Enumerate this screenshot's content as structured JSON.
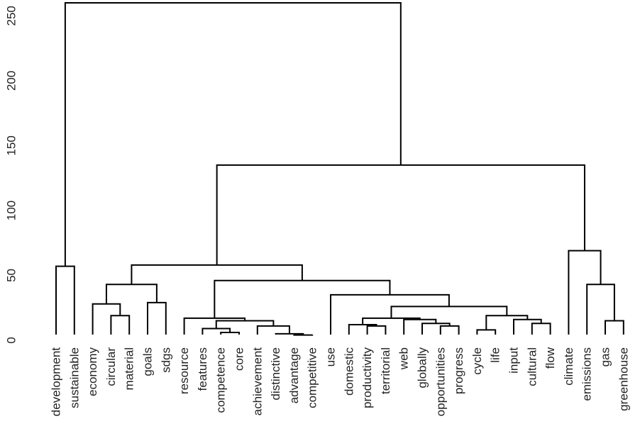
{
  "chart_data": {
    "type": "dendrogram",
    "labels": [
      "development",
      "sustainable",
      "economy",
      "circular",
      "material",
      "goals",
      "sdgs",
      "resource",
      "features",
      "competence",
      "core",
      "achievement",
      "distinctive",
      "advantage",
      "competitive",
      "use",
      "domestic",
      "productivity",
      "territorial",
      "web",
      "globally",
      "opportunities",
      "progress",
      "cycle",
      "life",
      "input",
      "cultural",
      "flow",
      "climate",
      "emissions",
      "gas",
      "greenhouse"
    ],
    "merge": [
      [
        -14,
        -15
      ],
      [
        -13,
        1
      ],
      [
        -10,
        -11
      ],
      [
        -24,
        -25
      ],
      [
        -9,
        3
      ],
      [
        -18,
        -19
      ],
      [
        -22,
        -23
      ],
      [
        -12,
        2
      ],
      [
        -21,
        7
      ],
      [
        -27,
        -28
      ],
      [
        -17,
        6
      ],
      [
        -31,
        -32
      ],
      [
        5,
        8
      ],
      [
        -20,
        9
      ],
      [
        -26,
        10
      ],
      [
        -8,
        13
      ],
      [
        11,
        14
      ],
      [
        -4,
        -5
      ],
      [
        4,
        15
      ],
      [
        17,
        19
      ],
      [
        -3,
        18
      ],
      [
        -6,
        -7
      ],
      [
        -16,
        20
      ],
      [
        -30,
        12
      ],
      [
        21,
        22
      ],
      [
        16,
        23
      ],
      [
        -1,
        -2
      ],
      [
        25,
        26
      ],
      [
        -29,
        24
      ],
      [
        28,
        29
      ],
      [
        27,
        30
      ]
    ],
    "height": [
      4,
      5,
      6,
      8,
      9,
      11,
      11,
      11,
      13,
      13,
      12,
      15,
      15,
      16,
      16,
      17,
      17,
      19,
      19,
      26,
      28,
      29,
      35,
      43,
      43,
      46,
      57,
      58,
      69,
      135,
      260
    ],
    "ylim": [
      0,
      260
    ],
    "yticks": [
      0,
      50,
      100,
      150,
      200,
      250
    ],
    "color": "#000000"
  }
}
